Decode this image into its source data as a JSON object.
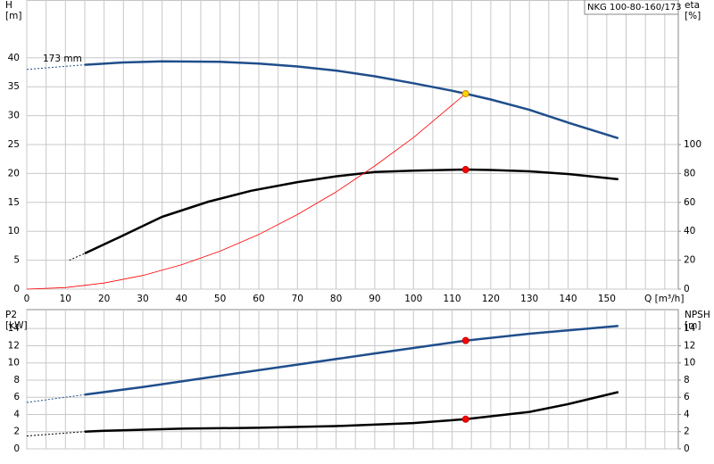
{
  "chart_data": [
    {
      "type": "line",
      "title": "NKG 100-80-160/173",
      "annotation": "173 mm",
      "y_label": [
        "H",
        "[m]"
      ],
      "y2_label": [
        "eta",
        "[%]"
      ],
      "x_label": "Q [m³/h]",
      "xlim": [
        0,
        168.5
      ],
      "ylim": [
        0,
        50
      ],
      "y2lim": [
        0,
        200
      ],
      "xticks": [
        0,
        10,
        20,
        30,
        40,
        50,
        60,
        70,
        80,
        90,
        100,
        110,
        120,
        130,
        140,
        150
      ],
      "xgrid": [
        0,
        5,
        10,
        15,
        20,
        25,
        30,
        35,
        40,
        45,
        50,
        55,
        60,
        65,
        70,
        75,
        80,
        85,
        90,
        95,
        100,
        105,
        110,
        115,
        120,
        125,
        130,
        135,
        140,
        145,
        150,
        155,
        160,
        165
      ],
      "yticks": [
        0,
        5,
        10,
        15,
        20,
        25,
        30,
        35,
        40
      ],
      "y2ticks": [
        0,
        20,
        40,
        60,
        80,
        100
      ],
      "series": [
        {
          "color": "#1f4e8c",
          "style": "dashed",
          "x": [
            0,
            15
          ],
          "values": [
            38.0,
            38.8
          ]
        },
        {
          "color": "#1f4e8c",
          "style": "solid",
          "x": [
            15,
            25,
            35,
            50,
            60,
            70,
            80,
            90,
            100,
            110,
            113.5,
            120,
            130,
            140,
            153
          ],
          "values": [
            38.8,
            39.2,
            39.4,
            39.3,
            39.0,
            38.5,
            37.8,
            36.8,
            35.6,
            34.3,
            33.8,
            32.8,
            31.0,
            28.8,
            26.1
          ]
        },
        {
          "color": "#000000",
          "style": "dashed",
          "axis": "y2",
          "x": [
            11,
            15
          ],
          "values": [
            20,
            24.7
          ]
        },
        {
          "color": "#000000",
          "style": "solid",
          "axis": "y2",
          "x": [
            15,
            24,
            35,
            47,
            58,
            70,
            80,
            90,
            100,
            113.5,
            120,
            130,
            140,
            153
          ],
          "values": [
            24.7,
            36,
            50,
            60.5,
            68,
            74,
            78,
            81,
            82,
            82.7,
            82.4,
            81.5,
            79.6,
            76
          ]
        },
        {
          "color": "#ff0000",
          "style": "thin",
          "x": [
            0,
            10,
            20,
            30,
            40,
            50,
            60,
            70,
            80,
            90,
            100,
            113.5
          ],
          "values": [
            0,
            0.26,
            1.05,
            2.36,
            4.2,
            6.56,
            9.45,
            12.9,
            16.8,
            21.3,
            26.2,
            33.8
          ]
        },
        {
          "color": "#ff0000",
          "style": "point",
          "axis": "y2",
          "x": [
            113.5
          ],
          "values": [
            82.7
          ]
        },
        {
          "color": "#ffd700",
          "style": "point",
          "x": [
            113.5
          ],
          "values": [
            33.8
          ]
        }
      ]
    },
    {
      "type": "line",
      "y_label": [
        "P2",
        "[kW]"
      ],
      "y2_label": [
        "NPSH",
        "[m]"
      ],
      "xlim": [
        0,
        168.5
      ],
      "ylim": [
        0,
        16.2
      ],
      "y2lim": [
        0,
        16.2
      ],
      "xgrid": [
        0,
        5,
        10,
        15,
        20,
        25,
        30,
        35,
        40,
        45,
        50,
        55,
        60,
        65,
        70,
        75,
        80,
        85,
        90,
        95,
        100,
        105,
        110,
        115,
        120,
        125,
        130,
        135,
        140,
        145,
        150,
        155,
        160,
        165
      ],
      "yticks": [
        0,
        2,
        4,
        6,
        8,
        10,
        12,
        14
      ],
      "y2ticks": [
        0,
        2,
        4,
        6,
        8,
        10,
        12,
        14
      ],
      "series": [
        {
          "color": "#1f4e8c",
          "style": "dashed",
          "x": [
            0,
            15
          ],
          "values": [
            5.4,
            6.3
          ]
        },
        {
          "color": "#1f4e8c",
          "style": "solid",
          "x": [
            15,
            30,
            50,
            70,
            90,
            113.5,
            130,
            153
          ],
          "values": [
            6.3,
            7.2,
            8.5,
            9.8,
            11.1,
            12.6,
            13.4,
            14.3
          ]
        },
        {
          "color": "#000000",
          "style": "dashed",
          "axis": "y2",
          "x": [
            0,
            15
          ],
          "values": [
            1.5,
            2.0
          ]
        },
        {
          "color": "#000000",
          "style": "solid",
          "axis": "y2",
          "x": [
            15,
            20,
            40,
            60,
            80,
            100,
            113.5,
            130,
            140,
            153
          ],
          "values": [
            2.0,
            2.1,
            2.35,
            2.45,
            2.65,
            3.0,
            3.45,
            4.3,
            5.2,
            6.6
          ]
        },
        {
          "color": "#ff0000",
          "style": "point",
          "x": [
            113.5
          ],
          "values": [
            12.6
          ]
        },
        {
          "color": "#ff0000",
          "style": "point",
          "axis": "y2",
          "x": [
            113.5
          ],
          "values": [
            3.45
          ]
        }
      ]
    }
  ]
}
